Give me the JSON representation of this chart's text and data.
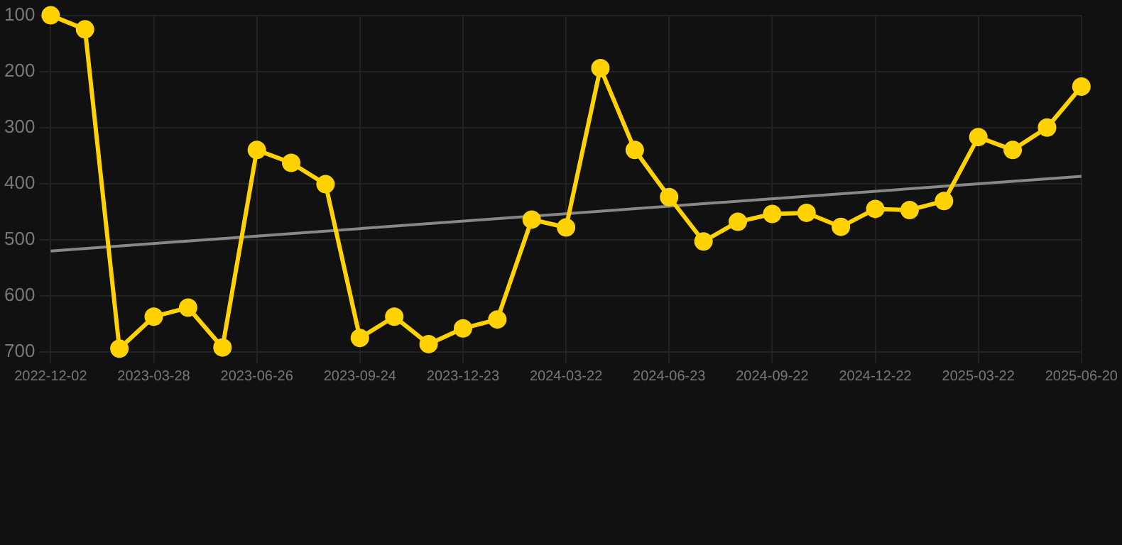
{
  "chart_data": {
    "type": "line",
    "categories": [
      "2022-12-02",
      null,
      null,
      "2023-03-28",
      null,
      null,
      "2023-06-26",
      null,
      null,
      "2023-09-24",
      null,
      null,
      "2023-12-23",
      null,
      null,
      "2024-03-22",
      null,
      null,
      "2024-06-23",
      null,
      null,
      "2024-09-22",
      null,
      null,
      "2024-12-22",
      null,
      null,
      "2025-03-22",
      null,
      null,
      "2025-06-20"
    ],
    "series": [
      {
        "color": "#ffd200",
        "marker": "circle",
        "values": [
          100,
          125,
          694,
          637,
          621,
          692,
          340,
          363,
          401,
          675,
          637,
          686,
          658,
          642,
          464,
          478,
          194,
          340,
          424,
          503,
          468,
          454,
          452,
          477,
          445,
          447,
          431,
          317,
          340,
          300,
          227
        ]
      },
      {
        "type": "line",
        "color": "#888888",
        "marker": "none",
        "values": [
          520,
          null,
          null,
          null,
          null,
          null,
          null,
          null,
          null,
          null,
          null,
          null,
          null,
          null,
          null,
          null,
          null,
          null,
          null,
          null,
          null,
          null,
          null,
          null,
          null,
          null,
          null,
          null,
          null,
          null,
          387
        ]
      }
    ],
    "ylim": [
      700,
      100
    ],
    "yticks": [
      100,
      200,
      300,
      400,
      500,
      600,
      700
    ],
    "grid": true,
    "legend": false
  }
}
